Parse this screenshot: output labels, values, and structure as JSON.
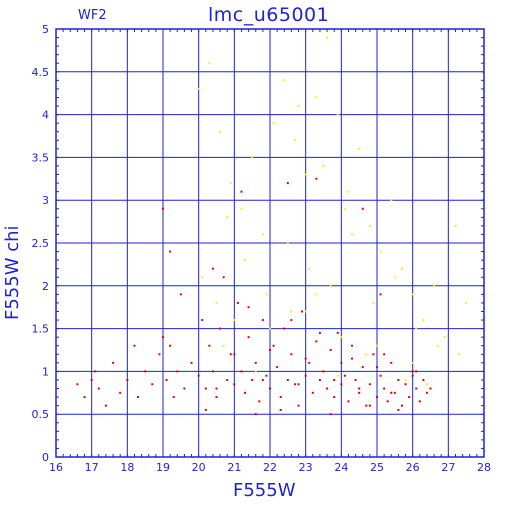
{
  "chart_data": {
    "type": "scatter",
    "title": "lmc_u65001",
    "panel_label": "WF2",
    "xlabel": "F555W",
    "ylabel": "F555W chi",
    "xlim": [
      16,
      28
    ],
    "ylim": [
      0,
      5
    ],
    "x_ticks": [
      "16",
      "17",
      "18",
      "19",
      "20",
      "21",
      "22",
      "23",
      "24",
      "25",
      "26",
      "27",
      "28"
    ],
    "y_ticks": [
      "0",
      "0.5",
      "1",
      "1.5",
      "2",
      "2.5",
      "3",
      "3.5",
      "4",
      "4.5",
      "5"
    ],
    "grid": true,
    "colors": {
      "axis": "#1f22d6",
      "primary_points": "#e60000",
      "secondary_points": "#ffe81a"
    },
    "series": [
      {
        "color": "#e60000",
        "x": [
          16.6,
          16.8,
          17.0,
          17.2,
          17.4,
          17.6,
          17.8,
          18.0,
          18.3,
          18.5,
          18.7,
          18.9,
          19.0,
          19.1,
          19.2,
          19.3,
          19.4,
          19.6,
          19.8,
          20.0,
          20.1,
          20.2,
          20.3,
          20.4,
          20.5,
          20.6,
          20.8,
          20.9,
          21.0,
          21.1,
          21.2,
          21.3,
          21.4,
          21.5,
          21.6,
          21.7,
          21.8,
          21.9,
          22.0,
          22.1,
          22.2,
          22.3,
          22.4,
          22.5,
          22.6,
          22.7,
          22.8,
          22.9,
          23.0,
          23.1,
          23.2,
          23.3,
          23.4,
          23.5,
          23.6,
          23.7,
          23.8,
          23.9,
          24.0,
          24.1,
          24.2,
          24.3,
          24.4,
          24.5,
          24.6,
          24.7,
          24.8,
          24.9,
          25.0,
          25.1,
          25.2,
          25.3,
          25.4,
          25.5,
          25.6,
          25.7,
          25.8,
          25.9,
          26.0,
          26.1,
          26.2,
          26.3,
          26.4,
          26.5,
          17.1,
          18.2,
          19.5,
          20.7,
          21.4,
          22.6,
          23.4,
          24.3,
          25.2,
          26.1,
          19.0,
          19.2,
          20.4,
          21.2,
          22.5,
          23.3,
          24.6,
          25.1,
          20.2,
          21.6,
          22.3,
          23.7,
          24.8,
          25.6,
          21.0,
          22.0,
          23.0,
          24.0,
          25.0,
          26.0,
          20.5,
          21.8,
          22.8,
          23.8,
          24.5,
          25.4
        ],
        "y": [
          0.85,
          0.7,
          0.9,
          0.8,
          0.6,
          1.1,
          0.75,
          0.9,
          0.7,
          1.0,
          0.85,
          1.2,
          1.4,
          0.9,
          1.3,
          0.7,
          1.0,
          0.8,
          1.1,
          0.95,
          1.6,
          0.8,
          1.3,
          1.0,
          0.7,
          1.5,
          0.9,
          1.2,
          0.85,
          1.8,
          1.0,
          0.75,
          1.4,
          0.9,
          1.1,
          0.65,
          1.6,
          0.95,
          0.8,
          1.3,
          1.05,
          0.7,
          1.5,
          0.9,
          1.2,
          0.85,
          0.6,
          1.7,
          0.95,
          1.1,
          0.75,
          1.35,
          0.9,
          1.0,
          0.8,
          1.25,
          0.7,
          1.45,
          0.85,
          0.95,
          0.65,
          1.15,
          0.9,
          0.75,
          1.05,
          0.6,
          0.85,
          1.2,
          0.7,
          0.95,
          0.8,
          0.65,
          1.1,
          0.75,
          0.9,
          0.6,
          0.85,
          0.7,
          1.0,
          0.8,
          0.65,
          0.9,
          0.75,
          0.8,
          1.0,
          1.3,
          1.9,
          2.1,
          1.75,
          1.6,
          1.45,
          1.3,
          1.2,
          1.0,
          2.9,
          2.4,
          2.2,
          3.1,
          3.2,
          3.25,
          2.9,
          1.9,
          0.55,
          0.5,
          0.55,
          0.5,
          0.6,
          0.55,
          1.2,
          1.25,
          1.15,
          1.1,
          1.05,
          0.95,
          0.8,
          0.9,
          0.85,
          0.9,
          0.8,
          0.75
        ]
      },
      {
        "color": "#ffe81a",
        "x": [
          20.0,
          20.3,
          20.6,
          20.9,
          21.2,
          21.5,
          21.8,
          22.1,
          22.4,
          22.7,
          23.0,
          23.3,
          23.6,
          23.9,
          24.2,
          24.5,
          24.8,
          25.1,
          25.4,
          25.7,
          26.0,
          26.3,
          26.6,
          26.9,
          27.2,
          27.5,
          20.1,
          20.8,
          21.3,
          21.9,
          22.5,
          23.1,
          23.7,
          24.3,
          24.9,
          25.5,
          26.1,
          26.7,
          27.3,
          20.5,
          21.0,
          22.0,
          23.0,
          24.0,
          25.0,
          26.0,
          22.8,
          23.5,
          24.1,
          23.3,
          22.6,
          24.7,
          21.6,
          20.7,
          23.9,
          25.8,
          26.4
        ],
        "y": [
          4.3,
          4.6,
          3.8,
          3.2,
          2.9,
          3.5,
          2.6,
          3.9,
          4.4,
          3.7,
          3.3,
          4.2,
          4.9,
          4.0,
          3.1,
          3.6,
          2.7,
          2.4,
          3.0,
          2.2,
          1.9,
          1.6,
          2.0,
          1.4,
          2.7,
          1.8,
          2.1,
          2.8,
          2.3,
          1.9,
          2.5,
          2.2,
          2.0,
          2.6,
          1.8,
          2.1,
          1.5,
          1.3,
          1.2,
          1.8,
          1.6,
          1.5,
          1.7,
          1.4,
          1.3,
          1.1,
          4.1,
          3.4,
          2.9,
          1.9,
          1.7,
          1.2,
          1.0,
          1.3,
          0.95,
          0.9,
          0.85
        ]
      }
    ]
  }
}
